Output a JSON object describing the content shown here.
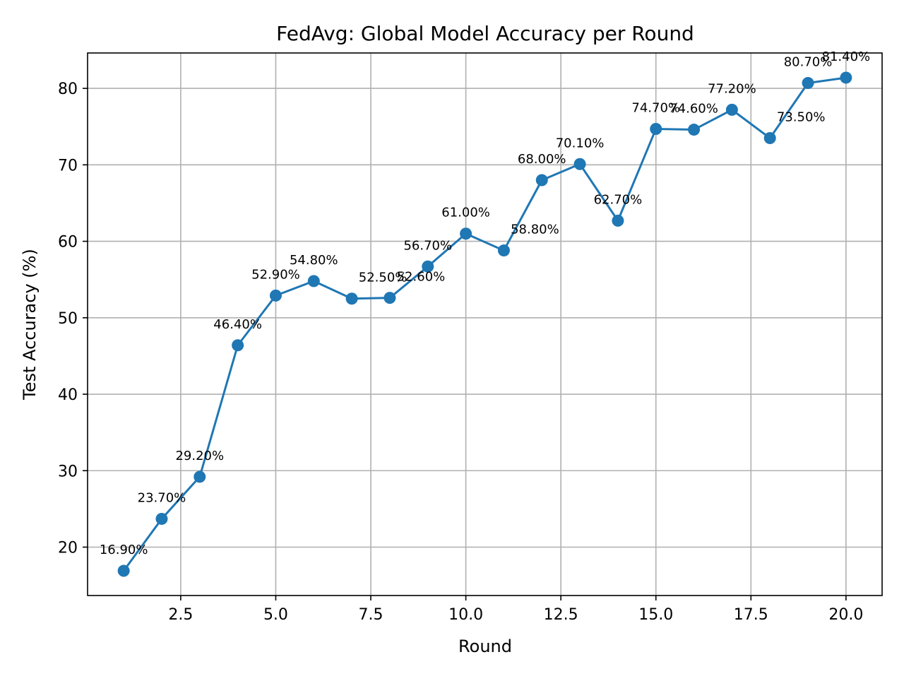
{
  "chart_data": {
    "type": "line",
    "title": "FedAvg: Global Model Accuracy per Round",
    "xlabel": "Round",
    "ylabel": "Test Accuracy (%)",
    "xlim": [
      0.05,
      20.95
    ],
    "ylim": [
      13.67,
      84.63
    ],
    "xticks": [
      2.5,
      5.0,
      7.5,
      10.0,
      12.5,
      15.0,
      17.5,
      20.0
    ],
    "xtick_labels": [
      "2.5",
      "5.0",
      "7.5",
      "10.0",
      "12.5",
      "15.0",
      "17.5",
      "20.0"
    ],
    "yticks": [
      20,
      30,
      40,
      50,
      60,
      70,
      80
    ],
    "ytick_labels": [
      "20",
      "30",
      "40",
      "50",
      "60",
      "70",
      "80"
    ],
    "grid": true,
    "x": [
      1,
      2,
      3,
      4,
      5,
      6,
      7,
      8,
      9,
      10,
      11,
      12,
      13,
      14,
      15,
      16,
      17,
      18,
      19,
      20
    ],
    "series": [
      {
        "values": [
          16.9,
          23.7,
          29.2,
          46.4,
          52.9,
          54.8,
          52.5,
          52.6,
          56.7,
          61.0,
          58.8,
          68.0,
          70.1,
          62.7,
          74.7,
          74.6,
          77.2,
          73.5,
          80.7,
          81.4
        ],
        "labels": [
          "16.90%",
          "23.70%",
          "29.20%",
          "46.40%",
          "52.90%",
          "54.80%",
          "52.50%",
          "52.60%",
          "56.70%",
          "61.00%",
          "58.80%",
          "68.00%",
          "70.10%",
          "62.70%",
          "74.70%",
          "74.60%",
          "77.20%",
          "73.50%",
          "80.70%",
          "81.40%"
        ],
        "label_side": [
          "above",
          "above",
          "above",
          "above",
          "above",
          "above",
          "above-right",
          "above-right",
          "above",
          "above",
          "above-right",
          "above",
          "above",
          "above",
          "above",
          "above",
          "above",
          "above-right",
          "above",
          "above"
        ],
        "color": "#1f77b4",
        "marker": "circle"
      }
    ]
  }
}
